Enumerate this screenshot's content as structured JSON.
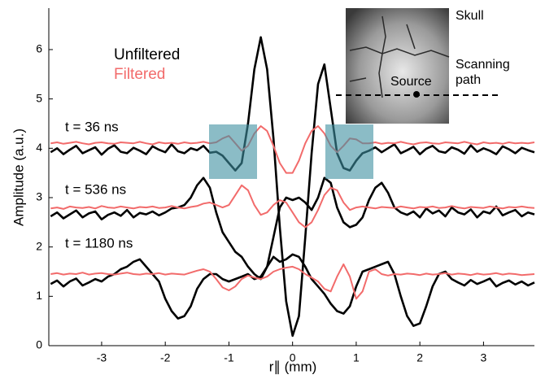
{
  "chart_data": {
    "type": "line",
    "xlabel": "r∥ (mm)",
    "ylabel": "Amplitude (a.u.)",
    "xlim": [
      -3.83,
      3.8
    ],
    "ylim": [
      0,
      6.84
    ],
    "xticks": [
      -3,
      -2,
      -1,
      0,
      1,
      2,
      3
    ],
    "yticks": [
      0,
      1,
      2,
      3,
      4,
      5,
      6
    ],
    "legend": [
      {
        "label": "Unfiltered",
        "color": "#000000"
      },
      {
        "label": "Filtered",
        "color": "#f26b6b"
      }
    ],
    "annotations": [
      "t = 36 ns",
      "t = 536 ns",
      "t = 1180 ns"
    ],
    "inset": {
      "skull": "Skull",
      "path_lines": [
        "Scanning",
        "path"
      ],
      "source": "Source"
    },
    "x": [
      -3.8,
      -3.7,
      -3.6,
      -3.5,
      -3.4,
      -3.3,
      -3.2,
      -3.1,
      -3.0,
      -2.9,
      -2.8,
      -2.7,
      -2.6,
      -2.5,
      -2.4,
      -2.3,
      -2.2,
      -2.1,
      -2.0,
      -1.9,
      -1.8,
      -1.7,
      -1.6,
      -1.5,
      -1.4,
      -1.3,
      -1.2,
      -1.1,
      -1.0,
      -0.9,
      -0.8,
      -0.7,
      -0.6,
      -0.5,
      -0.4,
      -0.3,
      -0.2,
      -0.1,
      0,
      0.1,
      0.2,
      0.3,
      0.4,
      0.5,
      0.6,
      0.7,
      0.8,
      0.9,
      1.0,
      1.1,
      1.2,
      1.3,
      1.4,
      1.5,
      1.6,
      1.7,
      1.8,
      1.9,
      2.0,
      2.1,
      2.2,
      2.3,
      2.4,
      2.5,
      2.6,
      2.7,
      2.8,
      2.9,
      3.0,
      3.1,
      3.2,
      3.3,
      3.4,
      3.5,
      3.6,
      3.7,
      3.8
    ],
    "series": [
      {
        "color": "#000000",
        "width": 2.6,
        "values": [
          3.92,
          4.0,
          3.88,
          3.97,
          4.05,
          3.9,
          3.96,
          4.02,
          3.87,
          3.99,
          4.06,
          3.93,
          3.9,
          4.01,
          3.95,
          3.88,
          4.04,
          3.97,
          3.92,
          4.08,
          3.94,
          3.9,
          4.0,
          3.96,
          4.05,
          3.91,
          3.93,
          3.85,
          3.7,
          3.55,
          3.7,
          4.5,
          5.6,
          6.25,
          5.6,
          4.2,
          2.4,
          0.9,
          0.2,
          0.6,
          2.2,
          3.9,
          5.3,
          5.7,
          4.8,
          3.9,
          3.6,
          3.55,
          3.75,
          3.9,
          3.95,
          4.02,
          3.92,
          4.0,
          4.08,
          3.9,
          3.96,
          4.03,
          3.88,
          3.99,
          4.05,
          3.94,
          3.91,
          4.02,
          3.97,
          3.89,
          4.06,
          3.93,
          4.0,
          3.95,
          3.88,
          4.04,
          3.98,
          3.9,
          4.01,
          3.96,
          3.92
        ]
      },
      {
        "color": "#000000",
        "width": 2.6,
        "values": [
          2.62,
          2.7,
          2.58,
          2.66,
          2.74,
          2.6,
          2.68,
          2.72,
          2.56,
          2.65,
          2.7,
          2.63,
          2.75,
          2.6,
          2.69,
          2.66,
          2.72,
          2.64,
          2.7,
          2.78,
          2.8,
          2.85,
          3.0,
          3.25,
          3.4,
          3.2,
          2.7,
          2.3,
          2.1,
          1.9,
          1.8,
          1.6,
          1.45,
          1.35,
          1.6,
          2.2,
          2.8,
          3.0,
          2.95,
          3.0,
          2.9,
          2.75,
          3.0,
          3.4,
          3.3,
          2.8,
          2.5,
          2.4,
          2.45,
          2.6,
          2.95,
          3.2,
          3.3,
          3.1,
          2.8,
          2.7,
          2.65,
          2.72,
          2.6,
          2.78,
          2.68,
          2.74,
          2.62,
          2.8,
          2.7,
          2.66,
          2.76,
          2.6,
          2.72,
          2.68,
          2.82,
          2.64,
          2.7,
          2.75,
          2.62,
          2.7,
          2.66
        ]
      },
      {
        "color": "#000000",
        "width": 2.6,
        "values": [
          1.25,
          1.32,
          1.2,
          1.3,
          1.36,
          1.22,
          1.28,
          1.35,
          1.3,
          1.4,
          1.45,
          1.55,
          1.6,
          1.7,
          1.75,
          1.6,
          1.45,
          1.3,
          0.95,
          0.7,
          0.55,
          0.6,
          0.8,
          1.15,
          1.35,
          1.45,
          1.45,
          1.35,
          1.3,
          1.35,
          1.4,
          1.45,
          1.35,
          1.4,
          1.6,
          1.8,
          1.7,
          1.75,
          1.85,
          1.8,
          1.6,
          1.35,
          1.2,
          1.05,
          0.85,
          0.7,
          0.65,
          0.8,
          1.2,
          1.5,
          1.55,
          1.6,
          1.65,
          1.7,
          1.45,
          1.0,
          0.6,
          0.4,
          0.45,
          0.8,
          1.2,
          1.45,
          1.5,
          1.35,
          1.28,
          1.22,
          1.33,
          1.25,
          1.3,
          1.36,
          1.2,
          1.27,
          1.32,
          1.24,
          1.3,
          1.22,
          1.28
        ]
      },
      {
        "color": "#f26b6b",
        "width": 2,
        "values": [
          4.1,
          4.12,
          4.09,
          4.11,
          4.13,
          4.1,
          4.08,
          4.11,
          4.12,
          4.1,
          4.09,
          4.12,
          4.11,
          4.1,
          4.13,
          4.1,
          4.08,
          4.12,
          4.1,
          4.11,
          4.09,
          4.12,
          4.1,
          4.11,
          4.13,
          4.1,
          4.12,
          4.2,
          4.25,
          4.1,
          3.95,
          4.05,
          4.3,
          4.45,
          4.35,
          4.05,
          3.7,
          3.5,
          3.5,
          3.75,
          4.1,
          4.35,
          4.45,
          4.3,
          4.05,
          3.92,
          4.05,
          4.2,
          4.18,
          4.1,
          4.1,
          4.12,
          4.09,
          4.11,
          4.1,
          4.13,
          4.1,
          4.08,
          4.11,
          4.12,
          4.1,
          4.09,
          4.12,
          4.11,
          4.1,
          4.13,
          4.1,
          4.08,
          4.12,
          4.1,
          4.11,
          4.09,
          4.12,
          4.1,
          4.11,
          4.1,
          4.12
        ]
      },
      {
        "color": "#f26b6b",
        "width": 2,
        "values": [
          2.78,
          2.8,
          2.77,
          2.82,
          2.8,
          2.79,
          2.81,
          2.78,
          2.83,
          2.8,
          2.79,
          2.82,
          2.8,
          2.78,
          2.81,
          2.8,
          2.82,
          2.79,
          2.8,
          2.83,
          2.8,
          2.78,
          2.81,
          2.83,
          2.88,
          2.9,
          2.85,
          2.8,
          2.85,
          3.05,
          3.25,
          3.15,
          2.85,
          2.65,
          2.7,
          2.85,
          2.95,
          2.9,
          2.7,
          2.5,
          2.4,
          2.5,
          2.75,
          3.05,
          3.2,
          3.15,
          2.9,
          2.75,
          2.8,
          2.82,
          2.8,
          2.78,
          2.81,
          2.8,
          2.79,
          2.82,
          2.8,
          2.78,
          2.81,
          2.8,
          2.82,
          2.79,
          2.8,
          2.83,
          2.8,
          2.78,
          2.81,
          2.8,
          2.79,
          2.82,
          2.8,
          2.78,
          2.81,
          2.8,
          2.82,
          2.8,
          2.79
        ]
      },
      {
        "color": "#f26b6b",
        "width": 2,
        "values": [
          1.45,
          1.47,
          1.44,
          1.46,
          1.45,
          1.48,
          1.44,
          1.46,
          1.47,
          1.45,
          1.44,
          1.46,
          1.48,
          1.45,
          1.44,
          1.46,
          1.45,
          1.47,
          1.44,
          1.46,
          1.45,
          1.44,
          1.48,
          1.52,
          1.55,
          1.5,
          1.35,
          1.18,
          1.12,
          1.2,
          1.35,
          1.42,
          1.38,
          1.35,
          1.4,
          1.5,
          1.55,
          1.58,
          1.6,
          1.55,
          1.45,
          1.38,
          1.3,
          1.15,
          1.1,
          1.4,
          1.65,
          1.4,
          0.95,
          1.1,
          1.5,
          1.55,
          1.45,
          1.42,
          1.45,
          1.44,
          1.46,
          1.45,
          1.43,
          1.46,
          1.44,
          1.45,
          1.47,
          1.44,
          1.46,
          1.45,
          1.43,
          1.46,
          1.44,
          1.45,
          1.47,
          1.44,
          1.46,
          1.45,
          1.43,
          1.44,
          1.45
        ]
      }
    ]
  }
}
